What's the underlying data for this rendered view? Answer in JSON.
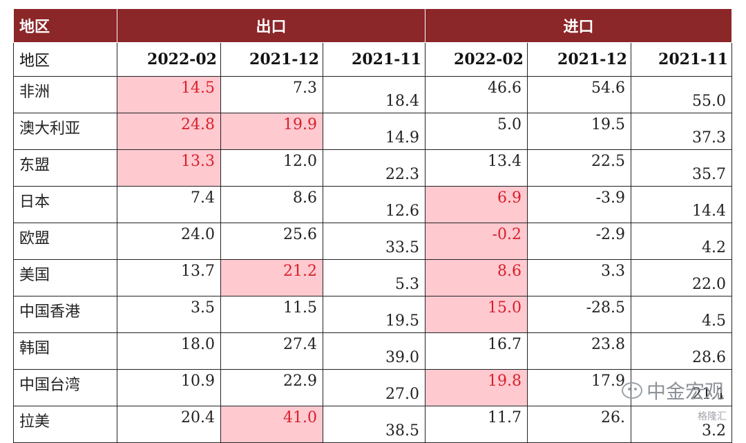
{
  "header": {
    "region": "地区",
    "export": "出口",
    "import": "进口"
  },
  "columns": {
    "region": "地区",
    "export": [
      "2022-02",
      "2021-12",
      "2021-11"
    ],
    "import": [
      "2022-02",
      "2021-12",
      "2021-11"
    ]
  },
  "rows": [
    {
      "region": "非洲",
      "values": [
        "14.5",
        "7.3",
        "18.4",
        "46.6",
        "54.6",
        "55.0"
      ],
      "hl": [
        true,
        false,
        false,
        false,
        false,
        false
      ]
    },
    {
      "region": "澳大利亚",
      "values": [
        "24.8",
        "19.9",
        "14.9",
        "5.0",
        "19.5",
        "37.3"
      ],
      "hl": [
        true,
        true,
        false,
        false,
        false,
        false
      ]
    },
    {
      "region": "东盟",
      "values": [
        "13.3",
        "12.0",
        "22.3",
        "13.4",
        "22.5",
        "35.7"
      ],
      "hl": [
        true,
        false,
        false,
        false,
        false,
        false
      ]
    },
    {
      "region": "日本",
      "values": [
        "7.4",
        "8.6",
        "12.6",
        "6.9",
        "-3.9",
        "14.4"
      ],
      "hl": [
        false,
        false,
        false,
        true,
        false,
        false
      ]
    },
    {
      "region": "欧盟",
      "values": [
        "24.0",
        "25.6",
        "33.5",
        "-0.2",
        "-2.9",
        "4.2"
      ],
      "hl": [
        false,
        false,
        false,
        true,
        false,
        false
      ]
    },
    {
      "region": "美国",
      "values": [
        "13.7",
        "21.2",
        "5.3",
        "8.6",
        "3.3",
        "22.0"
      ],
      "hl": [
        false,
        true,
        false,
        true,
        false,
        false
      ]
    },
    {
      "region": "中国香港",
      "values": [
        "3.5",
        "11.5",
        "19.5",
        "15.0",
        "-28.5",
        "4.5"
      ],
      "hl": [
        false,
        false,
        false,
        true,
        false,
        false
      ]
    },
    {
      "region": "韩国",
      "values": [
        "18.0",
        "27.4",
        "39.0",
        "16.7",
        "23.8",
        "28.6"
      ],
      "hl": [
        false,
        false,
        false,
        false,
        false,
        false
      ]
    },
    {
      "region": "中国台湾",
      "values": [
        "10.9",
        "22.9",
        "27.0",
        "19.8",
        "17.9",
        "21.1"
      ],
      "hl": [
        false,
        false,
        false,
        true,
        false,
        false
      ]
    },
    {
      "region": "拉美",
      "values": [
        "20.4",
        "41.0",
        "38.5",
        "11.7",
        "26.",
        "3.2"
      ],
      "hl": [
        false,
        true,
        false,
        false,
        false,
        false
      ]
    }
  ],
  "colors": {
    "header_bg": "#8b2629",
    "highlight_bg": "#ffc9d0",
    "highlight_text": "#d81f2a"
  },
  "watermark": {
    "main": "中金宏观",
    "sub": "格隆汇",
    "icon": "wechat-icon"
  }
}
